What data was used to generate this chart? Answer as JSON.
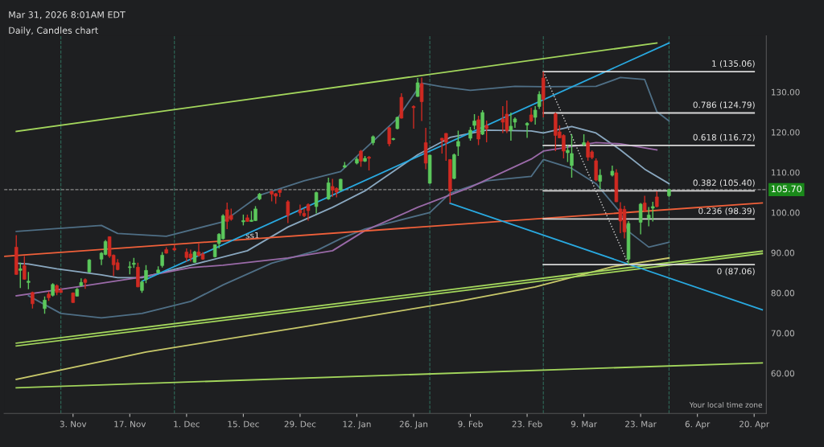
{
  "chart_data": {
    "type": "candlestick",
    "title": "Daily, Candles chart",
    "subtitle": "Mar 31, 2026 8:01AM EDT",
    "x": [
      "2025-10-20",
      "2025-10-21",
      "2025-10-22",
      "2025-10-23",
      "2025-10-24",
      "2025-10-27",
      "2025-10-28",
      "2025-10-29",
      "2025-10-30",
      "2025-10-31",
      "2025-11-03",
      "2025-11-04",
      "2025-11-05",
      "2025-11-06",
      "2025-11-07",
      "2025-11-10",
      "2025-11-11",
      "2025-11-12",
      "2025-11-13",
      "2025-11-14",
      "2025-11-17",
      "2025-11-18",
      "2025-11-19",
      "2025-11-20",
      "2025-11-21",
      "2025-11-24",
      "2025-11-25",
      "2025-11-26",
      "2025-11-28",
      "2025-12-01",
      "2025-12-02",
      "2025-12-03",
      "2025-12-04",
      "2025-12-05",
      "2025-12-08",
      "2025-12-09",
      "2025-12-10",
      "2025-12-11",
      "2025-12-12",
      "2025-12-15",
      "2025-12-16",
      "2025-12-17",
      "2025-12-18",
      "2025-12-19",
      "2025-12-22",
      "2025-12-23",
      "2025-12-24",
      "2025-12-26",
      "2025-12-29",
      "2025-12-30",
      "2025-12-31",
      "2026-01-02",
      "2026-01-05",
      "2026-01-06",
      "2026-01-07",
      "2026-01-08",
      "2026-01-09",
      "2026-01-12",
      "2026-01-13",
      "2026-01-14",
      "2026-01-15",
      "2026-01-16",
      "2026-01-20",
      "2026-01-21",
      "2026-01-22",
      "2026-01-23",
      "2026-01-26",
      "2026-01-27",
      "2026-01-28",
      "2026-01-29",
      "2026-01-30",
      "2026-02-02",
      "2026-02-03",
      "2026-02-04",
      "2026-02-05",
      "2026-02-06",
      "2026-02-09",
      "2026-02-10",
      "2026-02-11",
      "2026-02-12",
      "2026-02-13",
      "2026-02-17",
      "2026-02-18",
      "2026-02-19",
      "2026-02-20",
      "2026-02-23",
      "2026-02-24",
      "2026-02-25",
      "2026-02-26",
      "2026-02-27",
      "2026-03-02",
      "2026-03-03",
      "2026-03-04",
      "2026-03-05",
      "2026-03-06",
      "2026-03-09",
      "2026-03-10",
      "2026-03-11",
      "2026-03-12",
      "2026-03-13",
      "2026-03-16",
      "2026-03-17",
      "2026-03-18",
      "2026-03-19",
      "2026-03-20",
      "2026-03-23",
      "2026-03-24",
      "2026-03-25",
      "2026-03-26",
      "2026-03-27",
      "2026-03-30"
    ],
    "ohlc": [
      [
        91.4,
        94.4,
        84.5,
        84.6
      ],
      [
        85.6,
        87.5,
        81.2,
        86.0
      ],
      [
        86.8,
        89.2,
        83.3,
        83.4
      ],
      [
        82.6,
        85.2,
        80.9,
        82.9
      ],
      [
        80.1,
        80.3,
        76.1,
        77.3
      ],
      [
        76.1,
        79.1,
        74.8,
        78.2
      ],
      [
        79.7,
        80.3,
        78.0,
        78.8
      ],
      [
        79.4,
        82.4,
        79.1,
        82.1
      ],
      [
        81.8,
        82.1,
        79.4,
        80.1
      ],
      [
        80.6,
        81.2,
        80.0,
        80.1
      ],
      [
        80.0,
        80.1,
        77.5,
        77.6
      ],
      [
        79.2,
        81.2,
        79.1,
        80.9
      ],
      [
        81.8,
        83.6,
        81.6,
        82.6
      ],
      [
        83.3,
        83.6,
        81.0,
        82.6
      ],
      [
        85.2,
        88.4,
        85.1,
        88.2
      ],
      [
        88.4,
        90.2,
        86.9,
        89.9
      ],
      [
        89.6,
        93.2,
        89.4,
        92.8
      ],
      [
        94.0,
        94.1,
        88.7,
        89.2
      ],
      [
        89.4,
        89.6,
        84.2,
        87.0
      ],
      [
        87.5,
        88.4,
        85.6,
        85.8
      ],
      [
        86.3,
        87.8,
        84.6,
        86.5
      ],
      [
        87.1,
        88.7,
        86.2,
        87.4
      ],
      [
        86.4,
        87.5,
        81.4,
        81.5
      ],
      [
        80.6,
        83.0,
        80.0,
        82.7
      ],
      [
        83.3,
        86.9,
        82.4,
        85.6
      ],
      [
        85.0,
        86.6,
        84.8,
        85.7
      ],
      [
        86.8,
        90.2,
        86.3,
        89.4
      ],
      [
        90.8,
        91.4,
        89.8,
        89.9
      ],
      [
        91.1,
        92.0,
        90.5,
        90.7
      ],
      [
        90.2,
        91.1,
        87.8,
        88.8
      ],
      [
        89.7,
        90.8,
        87.8,
        88.7
      ],
      [
        87.6,
        90.5,
        87.5,
        90.2
      ],
      [
        90.2,
        92.3,
        89.0,
        89.3
      ],
      [
        89.7,
        90.2,
        88.2,
        88.4
      ],
      [
        89.0,
        92.1,
        88.8,
        92.0
      ],
      [
        92.3,
        94.9,
        91.1,
        94.6
      ],
      [
        93.5,
        99.6,
        93.3,
        99.2
      ],
      [
        100.7,
        102.5,
        95.9,
        97.8
      ],
      [
        99.3,
        101.0,
        98.0,
        98.3
      ],
      [
        97.7,
        99.5,
        96.8,
        98.0
      ],
      [
        98.7,
        99.5,
        97.7,
        97.8
      ],
      [
        97.8,
        100.4,
        97.7,
        98.1
      ],
      [
        98.0,
        101.6,
        97.9,
        100.9
      ],
      [
        103.4,
        104.9,
        103.1,
        104.6
      ],
      [
        105.3,
        105.4,
        102.8,
        104.6
      ],
      [
        104.7,
        104.9,
        102.2,
        104.1
      ],
      [
        105.6,
        105.8,
        103.9,
        105.0
      ],
      [
        102.7,
        103.1,
        97.4,
        99.3
      ],
      [
        100.6,
        102.0,
        99.2,
        99.9
      ],
      [
        99.8,
        101.0,
        98.9,
        99.2
      ],
      [
        102.0,
        102.3,
        98.0,
        100.5
      ],
      [
        101.5,
        105.2,
        99.8,
        105.0
      ],
      [
        103.4,
        108.7,
        103.2,
        107.4
      ],
      [
        106.5,
        108.4,
        103.9,
        105.6
      ],
      [
        106.0,
        106.3,
        103.8,
        105.1
      ],
      [
        105.6,
        108.4,
        105.4,
        108.3
      ],
      [
        111.3,
        112.6,
        111.1,
        111.7
      ],
      [
        112.3,
        113.8,
        112.0,
        113.3
      ],
      [
        115.3,
        115.6,
        111.4,
        112.8
      ],
      [
        112.8,
        114.1,
        112.6,
        113.5
      ],
      [
        113.8,
        114.1,
        110.5,
        113.5
      ],
      [
        117.4,
        119.2,
        116.8,
        118.9
      ],
      [
        121.1,
        121.3,
        116.5,
        117.1
      ],
      [
        118.2,
        118.6,
        118.0,
        118.4
      ],
      [
        120.9,
        123.9,
        120.7,
        123.7
      ],
      [
        128.7,
        129.7,
        123.4,
        123.5
      ],
      [
        126.4,
        126.7,
        120.9,
        126.1
      ],
      [
        128.9,
        133.5,
        128.8,
        132.3
      ],
      [
        132.1,
        133.6,
        122.8,
        127.6
      ],
      [
        117.4,
        121.1,
        110.8,
        112.3
      ],
      [
        107.3,
        114.4,
        107.2,
        114.3
      ],
      [
        118.5,
        118.6,
        114.7,
        118.0
      ],
      [
        119.7,
        119.8,
        112.9,
        117.5
      ],
      [
        113.2,
        113.3,
        102.4,
        105.4
      ],
      [
        108.5,
        114.7,
        108.3,
        114.4
      ],
      [
        116.5,
        120.4,
        114.1,
        117.7
      ],
      [
        118.5,
        121.3,
        117.9,
        120.5
      ],
      [
        121.7,
        124.5,
        120.7,
        122.8
      ],
      [
        123.1,
        124.1,
        116.8,
        118.3
      ],
      [
        119.5,
        125.5,
        119.3,
        124.9
      ],
      [
        121.7,
        122.9,
        117.5,
        120.9
      ],
      [
        123.3,
        126.5,
        119.8,
        122.5
      ],
      [
        124.5,
        127.9,
        119.8,
        120.4
      ],
      [
        120.5,
        124.9,
        117.9,
        121.5
      ],
      [
        122.5,
        123.7,
        121.1,
        123.3
      ],
      [
        121.8,
        122.5,
        118.6,
        122.2
      ],
      [
        124.3,
        126.1,
        122.5,
        122.8
      ],
      [
        123.7,
        126.5,
        121.9,
        125.5
      ],
      [
        126.4,
        130.2,
        125.8,
        129.4
      ],
      [
        133.5,
        135.06,
        123.7,
        128.2
      ],
      [
        124.6,
        124.9,
        115.3,
        119.2
      ],
      [
        120.1,
        121.7,
        118.5,
        118.6
      ],
      [
        119.2,
        119.5,
        113.5,
        115.3
      ],
      [
        114.9,
        116.8,
        112.6,
        115.5
      ],
      [
        111.7,
        119.5,
        108.7,
        114.7
      ],
      [
        116.9,
        119.5,
        116.5,
        117.4
      ],
      [
        117.4,
        117.9,
        112.9,
        113.8
      ],
      [
        115.1,
        115.5,
        113.3,
        113.7
      ],
      [
        112.9,
        113.5,
        107.8,
        108.1
      ],
      [
        107.8,
        110.8,
        105.8,
        109.3
      ],
      [
        109.3,
        111.7,
        109.0,
        110.3
      ],
      [
        109.9,
        110.8,
        102.6,
        102.7
      ],
      [
        100.9,
        102.6,
        94.9,
        97.9
      ],
      [
        100.8,
        101.7,
        93.6,
        95.2
      ],
      [
        88.4,
        97.9,
        87.06,
        97.3
      ],
      [
        97.6,
        102.4,
        94.6,
        102.1
      ],
      [
        102.4,
        104.2,
        100.3,
        100.5
      ],
      [
        98.6,
        101.4,
        96.6,
        99.4
      ],
      [
        101.1,
        102.7,
        97.8,
        101.5
      ],
      [
        103.9,
        105.3,
        101.3,
        101.5
      ],
      [
        104.2,
        105.9,
        103.9,
        105.7
      ]
    ],
    "colors": [
      "#cf2a22",
      "#5cc85c",
      "#cf2a22",
      "#5cc85c",
      "#cf2a22",
      "#5cc85c",
      "#cf2a22",
      "#5cc85c",
      "#cf2a22",
      "#cf2a22",
      "#cf2a22",
      "#5cc85c",
      "#5cc85c",
      "#cf2a22",
      "#5cc85c",
      "#5cc85c",
      "#5cc85c",
      "#cf2a22",
      "#cf2a22",
      "#cf2a22",
      "#5cc85c",
      "#5cc85c",
      "#cf2a22",
      "#5cc85c",
      "#5cc85c",
      "#5cc85c",
      "#5cc85c",
      "#cf2a22",
      "#cf2a22",
      "#cf2a22",
      "#cf2a22",
      "#5cc85c",
      "#cf2a22",
      "#cf2a22",
      "#5cc85c",
      "#5cc85c",
      "#5cc85c",
      "#cf2a22",
      "#cf2a22",
      "#5cc85c",
      "#cf2a22",
      "#5cc85c",
      "#5cc85c",
      "#5cc85c",
      "#cf2a22",
      "#cf2a22",
      "#cf2a22",
      "#cf2a22",
      "#cf2a22",
      "#cf2a22",
      "#cf2a22",
      "#5cc85c",
      "#5cc85c",
      "#cf2a22",
      "#cf2a22",
      "#5cc85c",
      "#5cc85c",
      "#5cc85c",
      "#cf2a22",
      "#5cc85c",
      "#cf2a22",
      "#5cc85c",
      "#cf2a22",
      "#5cc85c",
      "#5cc85c",
      "#cf2a22",
      "#cf2a22",
      "#5cc85c",
      "#cf2a22",
      "#cf2a22",
      "#5cc85c",
      "#cf2a22",
      "#cf2a22",
      "#cf2a22",
      "#5cc85c",
      "#5cc85c",
      "#5cc85c",
      "#5cc85c",
      "#cf2a22",
      "#5cc85c",
      "#cf2a22",
      "#cf2a22",
      "#cf2a22",
      "#5cc85c",
      "#5cc85c",
      "#5cc85c",
      "#cf2a22",
      "#5cc85c",
      "#5cc85c",
      "#cf2a22",
      "#cf2a22",
      "#cf2a22",
      "#cf2a22",
      "#5cc85c",
      "#5cc85c",
      "#5cc85c",
      "#cf2a22",
      "#cf2a22",
      "#cf2a22",
      "#5cc85c",
      "#5cc85c",
      "#cf2a22",
      "#cf2a22",
      "#cf2a22",
      "#5cc85c",
      "#5cc85c",
      "#cf2a22",
      "#5cc85c",
      "#5cc85c",
      "#cf2a22",
      "#5cc85c"
    ],
    "series": [
      {
        "type": "line",
        "color": "#c8c86a",
        "line_style": "solid",
        "x": [
          "2025-10-20",
          "2025-11-21",
          "2025-12-30",
          "2026-02-06",
          "2026-02-25",
          "2026-03-16",
          "2026-03-30"
        ],
        "values": [
          58.5,
          65.3,
          71.6,
          77.9,
          81.5,
          86.5,
          88.7
        ]
      },
      {
        "type": "line",
        "color": "#4f6f86",
        "line_style": "solid",
        "x": [
          "2025-10-20",
          "2025-11-10",
          "2025-11-14",
          "2025-11-26",
          "2025-12-10",
          "2025-12-19",
          "2025-12-30",
          "2026-01-08",
          "2026-01-22",
          "2026-01-28",
          "2026-02-02",
          "2026-02-09",
          "2026-02-20",
          "2026-02-27",
          "2026-03-12",
          "2026-03-18",
          "2026-03-24",
          "2026-03-27",
          "2026-03-30"
        ],
        "values": [
          95.3,
          96.8,
          94.8,
          94.1,
          97.7,
          104.3,
          107.9,
          110.2,
          123.4,
          132.2,
          131.3,
          130.4,
          131.4,
          131.3,
          131.4,
          133.6,
          133.1,
          125.1,
          122.8
        ]
      },
      {
        "type": "line",
        "color": "#4f6f86",
        "line_style": "solid",
        "x": [
          "2025-10-23",
          "2025-10-31",
          "2025-11-10",
          "2025-11-20",
          "2025-12-02",
          "2025-12-10",
          "2025-12-22",
          "2026-01-02",
          "2026-01-08",
          "2026-01-14",
          "2026-01-30",
          "2026-02-04",
          "2026-02-13",
          "2026-02-24",
          "2026-02-27",
          "2026-03-06",
          "2026-03-12",
          "2026-03-18",
          "2026-03-20",
          "2026-03-25",
          "2026-03-30"
        ],
        "values": [
          79.3,
          74.9,
          73.8,
          74.9,
          77.9,
          82.0,
          87.4,
          90.5,
          93.5,
          95.9,
          100.0,
          104.8,
          107.9,
          109.0,
          113.2,
          111.0,
          107.2,
          100.0,
          95.3,
          91.4,
          92.6
        ]
      },
      {
        "type": "line",
        "color": "#8aa8c0",
        "line_style": "solid",
        "x": [
          "2025-10-20",
          "2025-10-23",
          "2025-10-30",
          "2025-11-10",
          "2025-11-14",
          "2025-11-20",
          "2025-12-02",
          "2025-12-04",
          "2025-12-16",
          "2025-12-26",
          "2026-01-06",
          "2026-01-14",
          "2026-01-27",
          "2026-02-04",
          "2026-02-13",
          "2026-02-24",
          "2026-02-27",
          "2026-03-06",
          "2026-03-12",
          "2026-03-18",
          "2026-03-24",
          "2026-03-30"
        ],
        "values": [
          87.4,
          87.2,
          86.0,
          84.5,
          83.8,
          83.8,
          86.9,
          87.4,
          90.5,
          96.4,
          101.3,
          105.4,
          114.4,
          118.7,
          120.5,
          120.3,
          119.8,
          121.4,
          119.8,
          115.6,
          110.8,
          107.2
        ]
      },
      {
        "type": "line",
        "color": "#9a6aa8",
        "line_style": "solid",
        "x": [
          "2025-10-20",
          "2025-11-04",
          "2025-11-19",
          "2025-12-02",
          "2025-12-10",
          "2025-12-26",
          "2026-01-06",
          "2026-01-14",
          "2026-01-27",
          "2026-02-09",
          "2026-02-24",
          "2026-02-27",
          "2026-03-12",
          "2026-03-18",
          "2026-03-27"
        ],
        "values": [
          79.3,
          81.5,
          83.8,
          86.3,
          86.9,
          88.7,
          90.5,
          95.5,
          101.3,
          106.3,
          113.3,
          115.3,
          117.4,
          117.1,
          115.6
        ]
      },
      {
        "type": "line",
        "color": "#a3d65c",
        "line_style": "solid",
        "x": [
          "2025-10-20",
          "2026-03-27"
        ],
        "values": [
          120.2,
          142.2
        ]
      },
      {
        "type": "line",
        "color": "#a3d65c",
        "line_style": "solid",
        "x": [
          "2025-10-20",
          "2026-04-22"
        ],
        "values": [
          67.5,
          90.4
        ]
      },
      {
        "type": "line",
        "color": "#a3d65c",
        "line_style": "solid",
        "x": [
          "2025-10-20",
          "2026-04-22"
        ],
        "values": [
          66.8,
          89.8
        ]
      },
      {
        "type": "line",
        "color": "#a3d65c",
        "line_style": "solid",
        "x": [
          "2025-10-20",
          "2026-04-22"
        ],
        "values": [
          56.4,
          62.6
        ]
      },
      {
        "type": "line",
        "color": "#f0603a",
        "line_style": "solid",
        "x": [
          "2025-10-17",
          "2026-04-22"
        ],
        "values": [
          89.1,
          102.4
        ]
      },
      {
        "type": "line",
        "color": "#29a9e0",
        "line_style": "solid",
        "x": [
          "2025-11-20",
          "2026-03-30"
        ],
        "values": [
          82.9,
          142.2
        ]
      },
      {
        "type": "line",
        "color": "#29a9e0",
        "line_style": "solid",
        "x": [
          "2026-02-04",
          "2026-04-22"
        ],
        "values": [
          102.3,
          75.8
        ]
      },
      {
        "type": "line",
        "color": "#d8d8d8",
        "line_style": "solid",
        "x": [
          "2026-02-27",
          "2026-04-20"
        ],
        "values": [
          135.06,
          135.06
        ]
      },
      {
        "type": "line",
        "color": "#d8d8d8",
        "line_style": "solid",
        "x": [
          "2026-02-27",
          "2026-04-20"
        ],
        "values": [
          124.79,
          124.79
        ]
      },
      {
        "type": "line",
        "color": "#d8d8d8",
        "line_style": "solid",
        "x": [
          "2026-02-27",
          "2026-04-20"
        ],
        "values": [
          116.72,
          116.72
        ]
      },
      {
        "type": "line",
        "color": "#d8d8d8",
        "line_style": "solid",
        "x": [
          "2026-02-27",
          "2026-04-20"
        ],
        "values": [
          105.4,
          105.4
        ]
      },
      {
        "type": "line",
        "color": "#d8d8d8",
        "line_style": "solid",
        "x": [
          "2026-02-27",
          "2026-04-20"
        ],
        "values": [
          98.39,
          98.39
        ]
      },
      {
        "type": "line",
        "color": "#d8d8d8",
        "line_style": "solid",
        "x": [
          "2026-02-27",
          "2026-04-20"
        ],
        "values": [
          87.06,
          87.06
        ]
      },
      {
        "type": "line",
        "color": "#d8d8d8",
        "line_style": "dotted",
        "x": [
          "2026-02-27",
          "2026-03-20"
        ],
        "values": [
          135.06,
          87.06
        ]
      }
    ],
    "ref_lines": [
      {
        "axis": "y",
        "value": 105.7,
        "label": "105.70",
        "color": "#8a8a8a",
        "line_style": "dashed"
      },
      {
        "axis": "x",
        "value": "2025-10-31",
        "color": "#2f6b5a",
        "line_style": "dashed"
      },
      {
        "axis": "x",
        "value": "2025-11-28",
        "color": "#2f6b5a",
        "line_style": "dashed"
      },
      {
        "axis": "x",
        "value": "2026-01-30",
        "color": "#2f6b5a",
        "line_style": "dashed"
      },
      {
        "axis": "x",
        "value": "2026-02-27",
        "color": "#2f6b5a",
        "line_style": "dashed"
      },
      {
        "axis": "x",
        "value": "2026-03-30",
        "color": "#2f6b5a",
        "line_style": "dashed"
      }
    ],
    "annotations": [
      {
        "text": "1 (135.06)",
        "x": "2026-04-20",
        "y": 135.06
      },
      {
        "text": "0.786 (124.79)",
        "x": "2026-04-20",
        "y": 124.79
      },
      {
        "text": "0.618 (116.72)",
        "x": "2026-04-20",
        "y": 116.72
      },
      {
        "text": "0.382 (105.40)",
        "x": "2026-04-20",
        "y": 105.4
      },
      {
        "text": "0.236 (98.39)",
        "x": "2026-04-20",
        "y": 98.39
      },
      {
        "text": "0 (87.06)",
        "x": "2026-04-20",
        "y": 87.06
      },
      {
        "text": "ss1",
        "x": "2025-12-17",
        "y": 96.0
      },
      "Your local time zone"
    ],
    "xlim": [
      "2025-10-17",
      "2026-04-23"
    ],
    "xticks": [
      {
        "value": "2025-11-03",
        "label": "3. Nov"
      },
      {
        "value": "2025-11-17",
        "label": "17. Nov"
      },
      {
        "value": "2025-12-01",
        "label": "1. Dec"
      },
      {
        "value": "2025-12-15",
        "label": "15. Dec"
      },
      {
        "value": "2025-12-29",
        "label": "29. Dec"
      },
      {
        "value": "2026-01-12",
        "label": "12. Jan"
      },
      {
        "value": "2026-01-26",
        "label": "26. Jan"
      },
      {
        "value": "2026-02-09",
        "label": "9. Feb"
      },
      {
        "value": "2026-02-23",
        "label": "23. Feb"
      },
      {
        "value": "2026-03-09",
        "label": "9. Mar"
      },
      {
        "value": "2026-03-23",
        "label": "23. Mar"
      },
      {
        "value": "2026-04-06",
        "label": "6. Apr"
      },
      {
        "value": "2026-04-20",
        "label": "20. Apr"
      }
    ],
    "ylim": [
      50,
      144
    ],
    "yticks": [
      {
        "value": 60,
        "label": "60.00"
      },
      {
        "value": 70,
        "label": "70.00"
      },
      {
        "value": 80,
        "label": "80.00"
      },
      {
        "value": 90,
        "label": "90.00"
      },
      {
        "value": 100,
        "label": "100.00"
      },
      {
        "value": 110,
        "label": "110.00"
      },
      {
        "value": 120,
        "label": "120.00"
      },
      {
        "value": 130,
        "label": "130.00"
      }
    ]
  }
}
